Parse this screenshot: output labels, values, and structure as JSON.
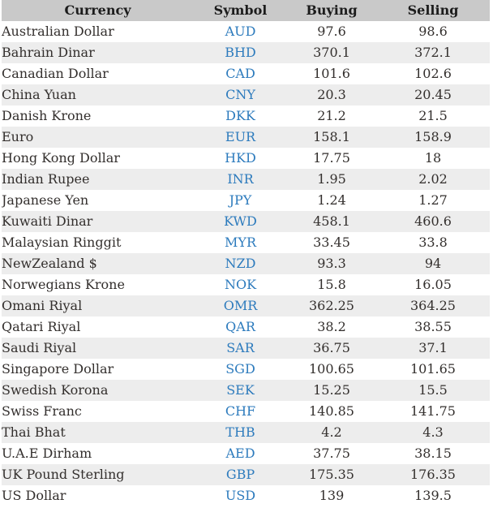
{
  "colors": {
    "header_bg": "#c9c9c9",
    "row_alt_bg": "#ededed",
    "header_text": "#1c1c1c",
    "text": "#332f2d",
    "symbol_link": "#2d7bbd"
  },
  "table": {
    "headers": [
      "Currency",
      "Symbol",
      "Buying",
      "Selling"
    ],
    "rows": [
      {
        "currency": "Australian Dollar",
        "symbol": "AUD",
        "buying": "97.6",
        "selling": "98.6"
      },
      {
        "currency": "Bahrain Dinar",
        "symbol": "BHD",
        "buying": "370.1",
        "selling": "372.1"
      },
      {
        "currency": "Canadian Dollar",
        "symbol": "CAD",
        "buying": "101.6",
        "selling": "102.6"
      },
      {
        "currency": "China Yuan",
        "symbol": "CNY",
        "buying": "20.3",
        "selling": "20.45"
      },
      {
        "currency": "Danish Krone",
        "symbol": "DKK",
        "buying": "21.2",
        "selling": "21.5"
      },
      {
        "currency": "Euro",
        "symbol": "EUR",
        "buying": "158.1",
        "selling": "158.9"
      },
      {
        "currency": "Hong Kong Dollar",
        "symbol": "HKD",
        "buying": "17.75",
        "selling": "18"
      },
      {
        "currency": "Indian Rupee",
        "symbol": "INR",
        "buying": "1.95",
        "selling": "2.02"
      },
      {
        "currency": "Japanese Yen",
        "symbol": "JPY",
        "buying": "1.24",
        "selling": "1.27"
      },
      {
        "currency": "Kuwaiti Dinar",
        "symbol": "KWD",
        "buying": "458.1",
        "selling": "460.6"
      },
      {
        "currency": "Malaysian Ringgit",
        "symbol": "MYR",
        "buying": "33.45",
        "selling": "33.8"
      },
      {
        "currency": "NewZealand $",
        "symbol": "NZD",
        "buying": "93.3",
        "selling": "94"
      },
      {
        "currency": "Norwegians Krone",
        "symbol": "NOK",
        "buying": "15.8",
        "selling": "16.05"
      },
      {
        "currency": "Omani Riyal",
        "symbol": "OMR",
        "buying": "362.25",
        "selling": "364.25"
      },
      {
        "currency": "Qatari Riyal",
        "symbol": "QAR",
        "buying": "38.2",
        "selling": "38.55"
      },
      {
        "currency": "Saudi Riyal",
        "symbol": "SAR",
        "buying": "36.75",
        "selling": "37.1"
      },
      {
        "currency": "Singapore Dollar",
        "symbol": "SGD",
        "buying": "100.65",
        "selling": "101.65"
      },
      {
        "currency": "Swedish Korona",
        "symbol": "SEK",
        "buying": "15.25",
        "selling": "15.5"
      },
      {
        "currency": "Swiss Franc",
        "symbol": "CHF",
        "buying": "140.85",
        "selling": "141.75"
      },
      {
        "currency": "Thai Bhat",
        "symbol": "THB",
        "buying": "4.2",
        "selling": "4.3"
      },
      {
        "currency": "U.A.E Dirham",
        "symbol": "AED",
        "buying": "37.75",
        "selling": "38.15"
      },
      {
        "currency": "UK Pound Sterling",
        "symbol": "GBP",
        "buying": "175.35",
        "selling": "176.35"
      },
      {
        "currency": "US Dollar",
        "symbol": "USD",
        "buying": "139",
        "selling": "139.5"
      }
    ]
  }
}
